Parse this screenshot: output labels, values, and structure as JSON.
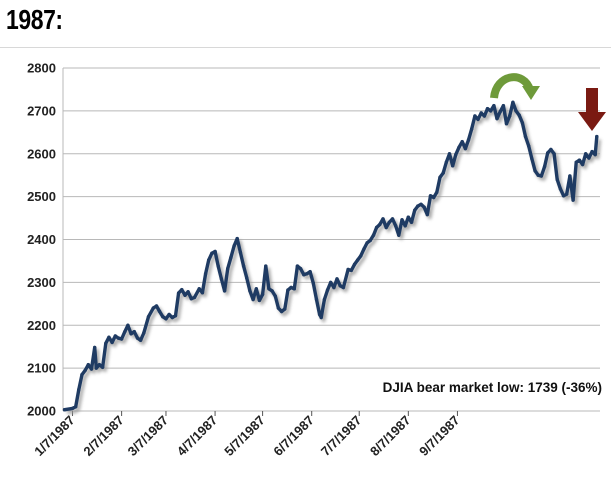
{
  "heading": "1987:",
  "colors": {
    "line": "#1f3b63",
    "shadow": "#9a9a9a",
    "grid": "#b8b8b8",
    "arrow_top": "#6e9a3a",
    "arrow_down": "#7a1a12"
  },
  "icons": [
    "curved-arrow-icon",
    "down-arrow-icon"
  ],
  "chart_data": {
    "type": "line",
    "title": "",
    "xlabel": "",
    "ylabel": "",
    "ylim": [
      2000,
      2800
    ],
    "yticks": [
      2000,
      2100,
      2200,
      2300,
      2400,
      2500,
      2600,
      2700,
      2800
    ],
    "xtick_labels": [
      "1/7/1987",
      "2/7/1987",
      "3/7/1987",
      "4/7/1987",
      "5/7/1987",
      "6/7/1987",
      "7/7/1987",
      "8/7/1987",
      "9/7/1987"
    ],
    "grid": "horizontal",
    "annotation": "DJIA bear market low: 1739  (-36%)",
    "series": [
      {
        "points": [
          [
            "1/2",
            2003
          ],
          [
            "1/7",
            2006
          ],
          [
            "1/9",
            2010
          ],
          [
            "1/11",
            2050
          ],
          [
            "1/13",
            2085
          ],
          [
            "1/15",
            2095
          ],
          [
            "1/17",
            2108
          ],
          [
            "1/19",
            2098
          ],
          [
            "1/21",
            2148
          ],
          [
            "1/22",
            2100
          ],
          [
            "1/24",
            2108
          ],
          [
            "1/26",
            2102
          ],
          [
            "1/28",
            2158
          ],
          [
            "1/30",
            2172
          ],
          [
            "2/1",
            2160
          ],
          [
            "2/3",
            2175
          ],
          [
            "2/5",
            2170
          ],
          [
            "2/7",
            2168
          ],
          [
            "2/9",
            2185
          ],
          [
            "2/11",
            2200
          ],
          [
            "2/13",
            2180
          ],
          [
            "2/15",
            2185
          ],
          [
            "2/17",
            2170
          ],
          [
            "2/19",
            2165
          ],
          [
            "2/21",
            2182
          ],
          [
            "2/24",
            2220
          ],
          [
            "2/27",
            2240
          ],
          [
            "3/1",
            2245
          ],
          [
            "3/3",
            2232
          ],
          [
            "3/5",
            2220
          ],
          [
            "3/7",
            2215
          ],
          [
            "3/9",
            2225
          ],
          [
            "3/11",
            2218
          ],
          [
            "3/13",
            2222
          ],
          [
            "3/15",
            2275
          ],
          [
            "3/17",
            2283
          ],
          [
            "3/19",
            2270
          ],
          [
            "3/21",
            2278
          ],
          [
            "3/23",
            2262
          ],
          [
            "3/25",
            2265
          ],
          [
            "3/28",
            2285
          ],
          [
            "3/30",
            2276
          ],
          [
            "4/1",
            2320
          ],
          [
            "4/3",
            2352
          ],
          [
            "4/5",
            2368
          ],
          [
            "4/7",
            2372
          ],
          [
            "4/9",
            2338
          ],
          [
            "4/11",
            2308
          ],
          [
            "4/13",
            2280
          ],
          [
            "4/15",
            2332
          ],
          [
            "4/17",
            2358
          ],
          [
            "4/19",
            2385
          ],
          [
            "4/21",
            2402
          ],
          [
            "4/23",
            2370
          ],
          [
            "4/25",
            2338
          ],
          [
            "4/27",
            2310
          ],
          [
            "4/29",
            2280
          ],
          [
            "5/1",
            2260
          ],
          [
            "5/3",
            2285
          ],
          [
            "5/5",
            2258
          ],
          [
            "5/7",
            2272
          ],
          [
            "5/9",
            2338
          ],
          [
            "5/11",
            2285
          ],
          [
            "5/13",
            2280
          ],
          [
            "5/15",
            2268
          ],
          [
            "5/17",
            2240
          ],
          [
            "5/19",
            2232
          ],
          [
            "5/21",
            2238
          ],
          [
            "5/23",
            2282
          ],
          [
            "5/25",
            2288
          ],
          [
            "5/27",
            2285
          ],
          [
            "5/29",
            2338
          ],
          [
            "5/31",
            2332
          ],
          [
            "6/2",
            2318
          ],
          [
            "6/4",
            2320
          ],
          [
            "6/6",
            2325
          ],
          [
            "6/8",
            2298
          ],
          [
            "6/10",
            2260
          ],
          [
            "6/12",
            2225
          ],
          [
            "6/13",
            2218
          ],
          [
            "6/15",
            2260
          ],
          [
            "6/17",
            2282
          ],
          [
            "6/19",
            2300
          ],
          [
            "6/21",
            2288
          ],
          [
            "6/23",
            2308
          ],
          [
            "6/25",
            2292
          ],
          [
            "6/27",
            2288
          ],
          [
            "6/30",
            2330
          ],
          [
            "7/2",
            2328
          ],
          [
            "7/4",
            2342
          ],
          [
            "7/6",
            2352
          ],
          [
            "7/8",
            2362
          ],
          [
            "7/10",
            2378
          ],
          [
            "7/12",
            2392
          ],
          [
            "7/14",
            2398
          ],
          [
            "7/16",
            2410
          ],
          [
            "7/18",
            2428
          ],
          [
            "7/20",
            2435
          ],
          [
            "7/22",
            2448
          ],
          [
            "7/24",
            2428
          ],
          [
            "7/26",
            2440
          ],
          [
            "7/28",
            2448
          ],
          [
            "7/30",
            2432
          ],
          [
            "8/1",
            2410
          ],
          [
            "8/3",
            2446
          ],
          [
            "8/5",
            2432
          ],
          [
            "8/7",
            2452
          ],
          [
            "8/9",
            2440
          ],
          [
            "8/11",
            2468
          ],
          [
            "8/13",
            2478
          ],
          [
            "8/15",
            2482
          ],
          [
            "8/17",
            2475
          ],
          [
            "8/19",
            2458
          ],
          [
            "8/21",
            2502
          ],
          [
            "8/23",
            2498
          ],
          [
            "8/25",
            2510
          ],
          [
            "8/27",
            2545
          ],
          [
            "8/29",
            2555
          ],
          [
            "8/31",
            2580
          ],
          [
            "9/2",
            2600
          ],
          [
            "9/4",
            2572
          ],
          [
            "9/6",
            2598
          ],
          [
            "9/8",
            2615
          ],
          [
            "9/10",
            2628
          ],
          [
            "9/12",
            2612
          ],
          [
            "9/14",
            2632
          ],
          [
            "9/16",
            2658
          ],
          [
            "9/18",
            2688
          ],
          [
            "9/20",
            2680
          ],
          [
            "9/22",
            2695
          ],
          [
            "9/24",
            2688
          ],
          [
            "9/26",
            2705
          ],
          [
            "9/28",
            2700
          ],
          [
            "9/30",
            2712
          ],
          [
            "10/2",
            2682
          ],
          [
            "10/4",
            2698
          ],
          [
            "10/6",
            2712
          ],
          [
            "10/8",
            2670
          ],
          [
            "10/10",
            2688
          ],
          [
            "10/12",
            2720
          ],
          [
            "10/14",
            2700
          ],
          [
            "10/16",
            2690
          ],
          [
            "10/18",
            2672
          ],
          [
            "10/20",
            2640
          ],
          [
            "10/22",
            2618
          ],
          [
            "10/24",
            2588
          ],
          [
            "10/26",
            2560
          ],
          [
            "10/28",
            2550
          ],
          [
            "10/30",
            2548
          ],
          [
            "11/1",
            2570
          ],
          [
            "11/3",
            2602
          ],
          [
            "11/5",
            2610
          ],
          [
            "11/7",
            2600
          ],
          [
            "11/9",
            2540
          ],
          [
            "11/11",
            2518
          ],
          [
            "11/13",
            2502
          ],
          [
            "11/15",
            2506
          ],
          [
            "11/17",
            2548
          ],
          [
            "11/19",
            2492
          ],
          [
            "11/21",
            2580
          ],
          [
            "11/23",
            2585
          ],
          [
            "11/25",
            2575
          ],
          [
            "11/27",
            2600
          ],
          [
            "11/29",
            2590
          ],
          [
            "12/1",
            2605
          ],
          [
            "12/3",
            2598
          ],
          [
            "12/4",
            2640
          ]
        ]
      }
    ]
  }
}
